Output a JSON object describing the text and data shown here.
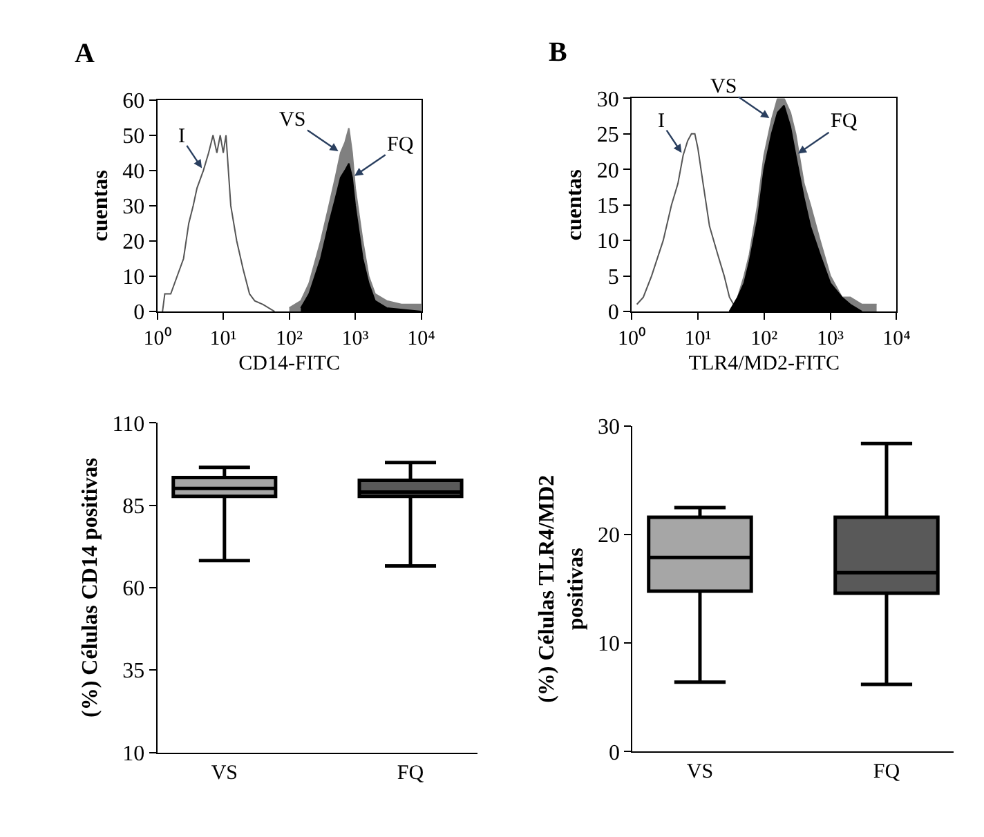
{
  "chart_data": [
    {
      "type": "line",
      "title": "A",
      "xlabel": "CD14-FITC",
      "ylabel": "cuentas",
      "log": "x",
      "marker": "none",
      "xlim": [
        1,
        10000
      ],
      "xticks": [
        {
          "value": 1,
          "label": "10⁰"
        },
        {
          "value": 10,
          "label": "10¹"
        },
        {
          "value": 100,
          "label": "10²"
        },
        {
          "value": 1000,
          "label": "10³"
        },
        {
          "value": 10000,
          "label": "10⁴"
        }
      ],
      "ylim": [
        0,
        60
      ],
      "yticks": [
        0,
        10,
        20,
        30,
        40,
        50,
        60
      ],
      "series": [
        {
          "name": "I",
          "type": "line",
          "color": "#555555",
          "x": [
            1.2,
            1.3,
            1.6,
            2,
            2.5,
            3,
            3.5,
            4,
            5,
            6,
            7,
            8,
            9,
            10,
            11,
            13,
            16,
            20,
            25,
            30,
            40,
            60
          ],
          "values": [
            0,
            5,
            5,
            10,
            15,
            25,
            30,
            35,
            40,
            45,
            50,
            45,
            50,
            45,
            50,
            30,
            20,
            12,
            5,
            3,
            2,
            0
          ]
        },
        {
          "name": "VS",
          "type": "area",
          "color": "#808080",
          "x": [
            100,
            150,
            200,
            300,
            400,
            500,
            600,
            700,
            800,
            900,
            1000,
            1300,
            1600,
            2000,
            3000,
            5000,
            10000
          ],
          "values": [
            1,
            3,
            8,
            20,
            30,
            38,
            45,
            48,
            52,
            45,
            35,
            20,
            10,
            5,
            3,
            2,
            2
          ]
        },
        {
          "name": "FQ",
          "type": "area",
          "color": "#000000",
          "x": [
            150,
            200,
            300,
            400,
            500,
            600,
            700,
            800,
            900,
            1000,
            1300,
            1600,
            2000,
            3000,
            10000
          ],
          "values": [
            1,
            5,
            15,
            25,
            32,
            38,
            40,
            42,
            38,
            30,
            15,
            8,
            3,
            1,
            0
          ]
        }
      ]
    },
    {
      "type": "line",
      "title": "B",
      "xlabel": "TLR4/MD2-FITC",
      "ylabel": "cuentas",
      "log": "x",
      "marker": "none",
      "xlim": [
        1,
        10000
      ],
      "xticks": [
        {
          "value": 1,
          "label": "10⁰"
        },
        {
          "value": 10,
          "label": "10¹"
        },
        {
          "value": 100,
          "label": "10²"
        },
        {
          "value": 1000,
          "label": "10³"
        },
        {
          "value": 10000,
          "label": "10⁴"
        }
      ],
      "ylim": [
        0,
        30
      ],
      "yticks": [
        0,
        5,
        10,
        15,
        20,
        25,
        30
      ],
      "series": [
        {
          "name": "I",
          "type": "line",
          "color": "#555555",
          "x": [
            1.2,
            1.5,
            2,
            3,
            4,
            5,
            6,
            7,
            8,
            9,
            10,
            12,
            15,
            20,
            25,
            30,
            40
          ],
          "values": [
            1,
            2,
            5,
            10,
            15,
            18,
            22,
            24,
            25,
            25,
            23,
            18,
            12,
            8,
            5,
            2,
            0
          ]
        },
        {
          "name": "VS",
          "type": "area",
          "color": "#808080",
          "x": [
            30,
            40,
            50,
            60,
            80,
            100,
            130,
            160,
            200,
            250,
            300,
            400,
            500,
            700,
            1000,
            1500,
            2000,
            3000,
            5000
          ],
          "values": [
            0,
            2,
            5,
            8,
            15,
            22,
            27,
            30,
            30,
            28,
            25,
            18,
            15,
            10,
            5,
            2,
            2,
            1,
            1
          ]
        },
        {
          "name": "FQ",
          "type": "area",
          "color": "#000000",
          "x": [
            30,
            40,
            50,
            60,
            80,
            100,
            130,
            160,
            200,
            250,
            300,
            400,
            500,
            700,
            1000,
            1500,
            2000,
            3000
          ],
          "values": [
            0,
            2,
            4,
            7,
            13,
            20,
            25,
            28,
            29,
            26,
            22,
            16,
            12,
            8,
            4,
            2,
            1,
            0
          ]
        }
      ]
    },
    {
      "type": "box",
      "ylabel": "(%) Células CD14 positivas",
      "categories": [
        "VS",
        "FQ"
      ],
      "colors": [
        "#a6a6a6",
        "#595959"
      ],
      "ylim": [
        10,
        110
      ],
      "yticks": [
        10,
        35,
        60,
        85,
        110
      ],
      "boxes": [
        {
          "low": 68.2,
          "q1": 87.7,
          "median": 90.1,
          "q3": 93.4,
          "high": 96.5
        },
        {
          "low": 66.6,
          "q1": 87.7,
          "median": 89.0,
          "q3": 92.6,
          "high": 98.0
        }
      ]
    },
    {
      "type": "box",
      "ylabel": "(%) Células TLR4/MD2\npositivas",
      "categories": [
        "VS",
        "FQ"
      ],
      "colors": [
        "#a6a6a6",
        "#595959"
      ],
      "ylim": [
        0,
        30
      ],
      "yticks": [
        0,
        10,
        20,
        30
      ],
      "boxes": [
        {
          "low": 6.4,
          "q1": 14.8,
          "median": 17.9,
          "q3": 21.6,
          "high": 22.5
        },
        {
          "low": 6.2,
          "q1": 14.6,
          "median": 16.5,
          "q3": 21.6,
          "high": 28.4
        }
      ]
    }
  ]
}
